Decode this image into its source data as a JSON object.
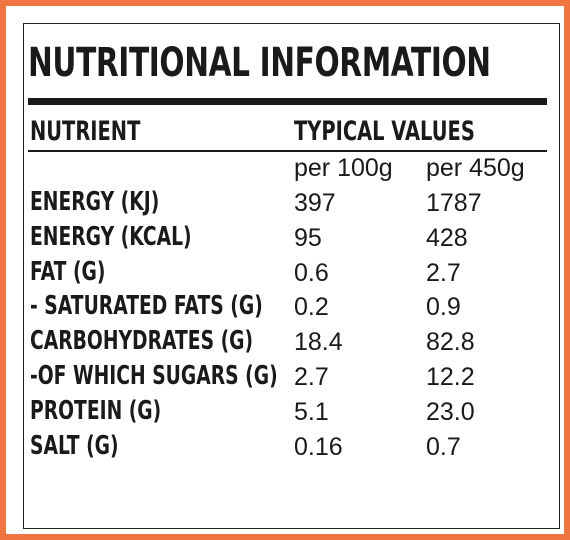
{
  "title": "NUTRITIONAL INFORMATION",
  "header": {
    "nutrient": "NUTRIENT",
    "typical_values": "TYPICAL VALUES",
    "per_100g": "per 100g",
    "per_450g": "per 450g"
  },
  "rows": [
    {
      "name": "ENERGY (KJ)",
      "per_100g": "397",
      "per_450g": "1787"
    },
    {
      "name": "ENERGY (KCAL)",
      "per_100g": "95",
      "per_450g": "428"
    },
    {
      "name": "FAT (G)",
      "per_100g": "0.6",
      "per_450g": "2.7"
    },
    {
      "name": "- SATURATED FATS (G)",
      "per_100g": "0.2",
      "per_450g": "0.9"
    },
    {
      "name": "CARBOHYDRATES (G)",
      "per_100g": "18.4",
      "per_450g": "82.8"
    },
    {
      "name": "-OF WHICH SUGARS (G)",
      "per_100g": "2.7",
      "per_450g": "12.2"
    },
    {
      "name": "PROTEIN (G)",
      "per_100g": "5.1",
      "per_450g": "23.0"
    },
    {
      "name": "SALT (G)",
      "per_100g": "0.16",
      "per_450g": "0.7"
    }
  ],
  "colors": {
    "border_accent": "#F07540",
    "text": "#1a1a1a",
    "background": "#ffffff"
  }
}
